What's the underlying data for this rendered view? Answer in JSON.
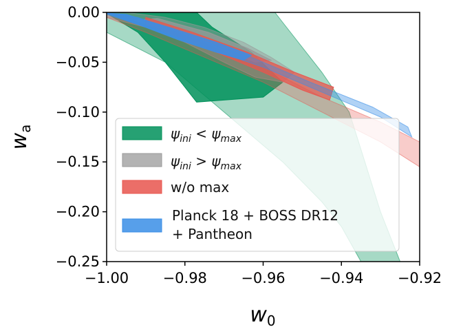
{
  "chart_data": {
    "type": "contour",
    "xlabel": "w",
    "xlabel_sub": "0",
    "ylabel": "w",
    "ylabel_sub": "a",
    "xlim": [
      -1.0,
      -0.92
    ],
    "ylim": [
      -0.25,
      0.0
    ],
    "xticks": [
      -1.0,
      -0.98,
      -0.96,
      -0.94,
      -0.92
    ],
    "xtick_labels": [
      "−1.00",
      "−0.98",
      "−0.96",
      "−0.94",
      "−0.92"
    ],
    "yticks": [
      0.0,
      -0.05,
      -0.1,
      -0.15,
      -0.2,
      -0.25
    ],
    "ytick_labels": [
      "0.00",
      "−0.05",
      "−0.10",
      "−0.15",
      "−0.20",
      "−0.25"
    ],
    "legend_position": "lower-left",
    "series": [
      {
        "name": "ψini < ψmax",
        "legend_main": "ψ",
        "legend_sub1": "ini",
        "legend_op": " < ψ",
        "legend_sub2": "max",
        "color": "#00915a",
        "contours": [
          {
            "level": "outer",
            "opacity": 0.35,
            "points": [
              [
                -1.0,
                -0.02
              ],
              [
                -0.985,
                -0.05
              ],
              [
                -0.97,
                -0.1
              ],
              [
                -0.955,
                -0.15
              ],
              [
                -0.945,
                -0.19
              ],
              [
                -0.94,
                -0.215
              ],
              [
                -0.935,
                -0.25
              ],
              [
                -0.925,
                -0.25
              ],
              [
                -0.93,
                -0.2
              ],
              [
                -0.934,
                -0.15
              ],
              [
                -0.938,
                -0.1
              ],
              [
                -0.945,
                -0.06
              ],
              [
                -0.955,
                -0.01
              ],
              [
                -0.957,
                0.0
              ],
              [
                -1.0,
                0.0
              ]
            ]
          },
          {
            "level": "inner",
            "opacity": 0.85,
            "points": [
              [
                -1.0,
                -0.001
              ],
              [
                -0.992,
                -0.02
              ],
              [
                -0.985,
                -0.05
              ],
              [
                -0.977,
                -0.09
              ],
              [
                -0.96,
                -0.085
              ],
              [
                -0.955,
                -0.07
              ],
              [
                -0.963,
                -0.04
              ],
              [
                -0.973,
                -0.015
              ],
              [
                -0.977,
                0.0
              ],
              [
                -1.0,
                0.0
              ]
            ]
          }
        ]
      },
      {
        "name": "ψini > ψmax",
        "legend_main": "ψ",
        "legend_sub1": "ini",
        "legend_op": " > ψ",
        "legend_sub2": "max",
        "color": "#999999",
        "contours": [
          {
            "level": "outer",
            "opacity": 0.45,
            "points": [
              [
                -1.0,
                -0.005
              ],
              [
                -0.99,
                -0.015
              ],
              [
                -0.98,
                -0.03
              ],
              [
                -0.97,
                -0.05
              ],
              [
                -0.962,
                -0.065
              ],
              [
                -0.955,
                -0.07
              ],
              [
                -0.952,
                -0.06
              ],
              [
                -0.958,
                -0.045
              ],
              [
                -0.965,
                -0.03
              ],
              [
                -0.975,
                -0.015
              ],
              [
                -0.985,
                -0.005
              ],
              [
                -0.995,
                0.0
              ],
              [
                -1.0,
                0.0
              ]
            ]
          },
          {
            "level": "inner",
            "opacity": 0.75,
            "points": [
              [
                -0.993,
                -0.008
              ],
              [
                -0.98,
                -0.022
              ],
              [
                -0.97,
                -0.038
              ],
              [
                -0.962,
                -0.05
              ],
              [
                -0.958,
                -0.048
              ],
              [
                -0.964,
                -0.036
              ],
              [
                -0.974,
                -0.02
              ],
              [
                -0.987,
                -0.006
              ]
            ]
          }
        ]
      },
      {
        "name": "w/o max",
        "legend_main": "w/o max",
        "color": "#e8554e",
        "contours": [
          {
            "level": "outer",
            "opacity": 0.3,
            "points": [
              [
                -1.0,
                -0.005
              ],
              [
                -0.99,
                -0.02
              ],
              [
                -0.975,
                -0.045
              ],
              [
                -0.96,
                -0.07
              ],
              [
                -0.945,
                -0.1
              ],
              [
                -0.93,
                -0.13
              ],
              [
                -0.92,
                -0.155
              ],
              [
                -0.92,
                -0.13
              ],
              [
                -0.93,
                -0.11
              ],
              [
                -0.945,
                -0.085
              ],
              [
                -0.96,
                -0.055
              ],
              [
                -0.975,
                -0.03
              ],
              [
                -0.99,
                -0.008
              ],
              [
                -1.0,
                0.0
              ]
            ]
          },
          {
            "level": "inner",
            "opacity": 0.75,
            "points": [
              [
                -0.99,
                -0.012
              ],
              [
                -0.975,
                -0.035
              ],
              [
                -0.96,
                -0.06
              ],
              [
                -0.95,
                -0.078
              ],
              [
                -0.943,
                -0.088
              ],
              [
                -0.942,
                -0.075
              ],
              [
                -0.952,
                -0.06
              ],
              [
                -0.964,
                -0.04
              ],
              [
                -0.978,
                -0.02
              ],
              [
                -0.99,
                -0.005
              ]
            ]
          }
        ]
      },
      {
        "name": "Planck 18 + BOSS DR12 + Pantheon",
        "legend_main": "Planck 18 + BOSS DR12",
        "legend_line2": " + Pantheon",
        "color": "#3a8ee6",
        "contours": [
          {
            "level": "outer",
            "opacity": 0.4,
            "points": [
              [
                -1.0,
                -0.002
              ],
              [
                -0.99,
                -0.015
              ],
              [
                -0.975,
                -0.035
              ],
              [
                -0.96,
                -0.055
              ],
              [
                -0.945,
                -0.08
              ],
              [
                -0.93,
                -0.105
              ],
              [
                -0.922,
                -0.125
              ],
              [
                -0.923,
                -0.115
              ],
              [
                -0.932,
                -0.095
              ],
              [
                -0.948,
                -0.07
              ],
              [
                -0.963,
                -0.045
              ],
              [
                -0.978,
                -0.025
              ],
              [
                -0.992,
                -0.005
              ],
              [
                -1.0,
                0.0
              ]
            ]
          },
          {
            "level": "inner",
            "opacity": 0.85,
            "points": [
              [
                -1.0,
                -0.001
              ],
              [
                -0.992,
                -0.012
              ],
              [
                -0.982,
                -0.027
              ],
              [
                -0.972,
                -0.04
              ],
              [
                -0.965,
                -0.048
              ],
              [
                -0.963,
                -0.043
              ],
              [
                -0.972,
                -0.03
              ],
              [
                -0.984,
                -0.015
              ],
              [
                -0.995,
                -0.002
              ]
            ]
          }
        ]
      }
    ]
  }
}
